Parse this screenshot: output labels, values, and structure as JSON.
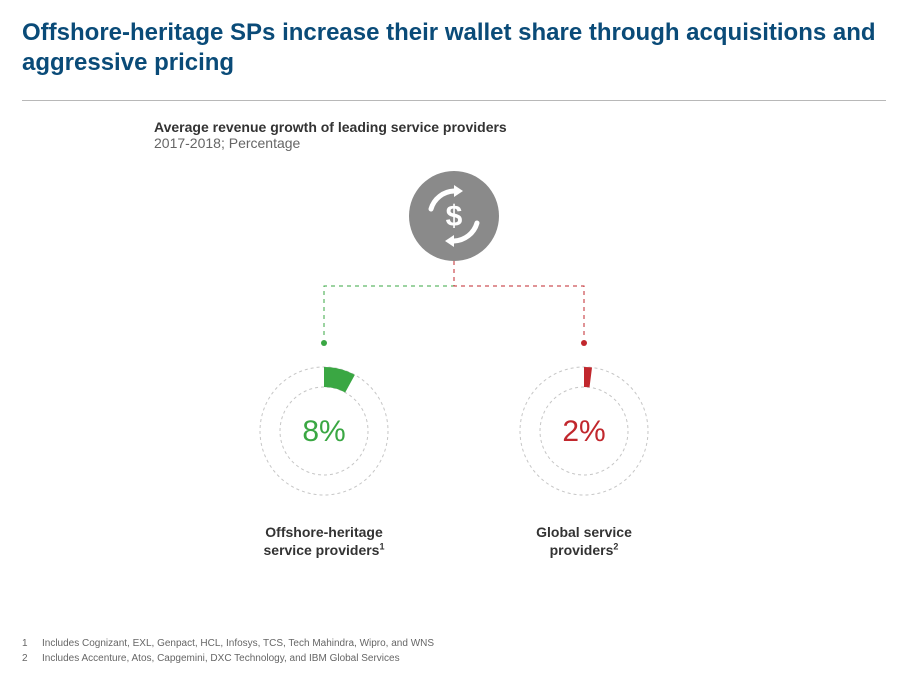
{
  "title": "Offshore-heritage SPs increase their wallet share through acquisitions and aggressive pricing",
  "subtitle_bold": "Average revenue growth of leading service providers",
  "subtitle_light": "2017-2018; Percentage",
  "title_color": "#0a4b78",
  "icon": {
    "name": "dollar-cycle-icon",
    "circle_fill": "#8a8a8a",
    "glyph_stroke": "#ffffff",
    "diameter": 90
  },
  "connectors": {
    "left_color": "#3aa743",
    "right_color": "#c1272d",
    "dash": "4,4",
    "stroke_width": 1,
    "dot_radius": 3
  },
  "donuts": [
    {
      "id": "offshore",
      "value": 8,
      "display": "8%",
      "color": "#3aa743",
      "label_line1": "Offshore-heritage",
      "label_line2": "service providers",
      "sup": "1",
      "ring_outer_r": 64,
      "ring_inner_r": 44,
      "ring_stroke": "#c6c6c6",
      "value_fontsize": 30
    },
    {
      "id": "global",
      "value": 2,
      "display": "2%",
      "color": "#c1272d",
      "label_line1": "Global service",
      "label_line2": "providers",
      "sup": "2",
      "ring_outer_r": 64,
      "ring_inner_r": 44,
      "ring_stroke": "#c6c6c6",
      "value_fontsize": 30
    }
  ],
  "footnotes": [
    {
      "num": "1",
      "text": "Includes Cognizant, EXL, Genpact, HCL, Infosys, TCS, Tech Mahindra, Wipro, and WNS"
    },
    {
      "num": "2",
      "text": "Includes Accenture, Atos, Capgemini, DXC Technology, and IBM Global Services"
    }
  ]
}
